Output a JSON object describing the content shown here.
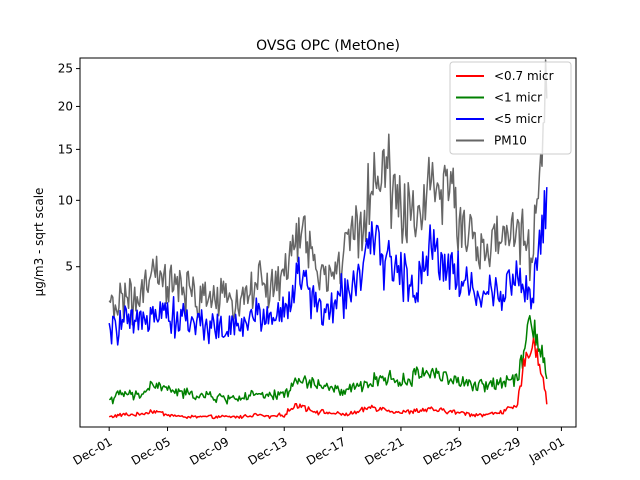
{
  "chart_data": {
    "type": "line",
    "title": "OVSG OPC (MetOne)",
    "xlabel": "",
    "ylabel": "µg/m3 - sqrt scale",
    "y_scale": "sqrt",
    "ylim": [
      0,
      26.5
    ],
    "xlim": [
      "2023-11-29",
      "2024-01-02"
    ],
    "y_ticks": [
      5,
      10,
      15,
      20,
      25
    ],
    "x_ticks": [
      {
        "date": "2023-12-01",
        "label": "Dec-01"
      },
      {
        "date": "2023-12-05",
        "label": "Dec-05"
      },
      {
        "date": "2023-12-09",
        "label": "Dec-09"
      },
      {
        "date": "2023-12-13",
        "label": "Dec-13"
      },
      {
        "date": "2023-12-17",
        "label": "Dec-17"
      },
      {
        "date": "2023-12-21",
        "label": "Dec-21"
      },
      {
        "date": "2023-12-25",
        "label": "Dec-25"
      },
      {
        "date": "2023-12-29",
        "label": "Dec-29"
      },
      {
        "date": "2024-01-01",
        "label": "Jan-01"
      }
    ],
    "grid": false,
    "legend_position": "top-right",
    "x": [
      "2023-12-01",
      "2023-12-02",
      "2023-12-03",
      "2023-12-04",
      "2023-12-05",
      "2023-12-06",
      "2023-12-07",
      "2023-12-08",
      "2023-12-09",
      "2023-12-10",
      "2023-12-11",
      "2023-12-12",
      "2023-12-13",
      "2023-12-14",
      "2023-12-15",
      "2023-12-16",
      "2023-12-17",
      "2023-12-18",
      "2023-12-19",
      "2023-12-20",
      "2023-12-21",
      "2023-12-22",
      "2023-12-23",
      "2023-12-24",
      "2023-12-25",
      "2023-12-26",
      "2023-12-27",
      "2023-12-28",
      "2023-12-29",
      "2023-12-30",
      "2023-12-31"
    ],
    "series": [
      {
        "name": "<0.7 micr",
        "color": "#ff0000",
        "values": [
          0.02,
          0.03,
          0.03,
          0.05,
          0.03,
          0.02,
          0.02,
          0.02,
          0.02,
          0.02,
          0.03,
          0.02,
          0.03,
          0.1,
          0.05,
          0.04,
          0.03,
          0.04,
          0.08,
          0.06,
          0.04,
          0.05,
          0.06,
          0.05,
          0.04,
          0.03,
          0.03,
          0.05,
          0.08,
          1.5,
          0.1
        ]
      },
      {
        "name": "<1 micr",
        "color": "#008000",
        "values": [
          0.15,
          0.22,
          0.18,
          0.35,
          0.28,
          0.22,
          0.2,
          0.18,
          0.16,
          0.17,
          0.2,
          0.18,
          0.22,
          0.42,
          0.38,
          0.3,
          0.24,
          0.3,
          0.4,
          0.5,
          0.38,
          0.52,
          0.62,
          0.5,
          0.4,
          0.32,
          0.35,
          0.42,
          0.5,
          2.3,
          0.45
        ]
      },
      {
        "name": "<5 micr",
        "color": "#0000ff",
        "values": [
          1.7,
          2.2,
          1.9,
          3.0,
          2.5,
          2.3,
          2.1,
          2.1,
          1.8,
          2.0,
          2.5,
          2.4,
          2.6,
          4.5,
          3.2,
          2.4,
          3.5,
          4.4,
          6.3,
          5.8,
          4.5,
          3.8,
          6.5,
          5.5,
          4.5,
          3.5,
          3.3,
          3.8,
          4.5,
          3.0,
          11.2
        ]
      },
      {
        "name": "PM10",
        "color": "#666666",
        "values": [
          2.6,
          3.4,
          2.9,
          4.6,
          4.0,
          3.6,
          3.3,
          3.4,
          3.0,
          3.3,
          4.0,
          3.9,
          4.3,
          7.7,
          5.5,
          4.0,
          5.8,
          7.6,
          11.0,
          13.0,
          9.8,
          8.2,
          12.4,
          10.8,
          9.0,
          6.5,
          6.2,
          6.8,
          7.6,
          5.0,
          21.0
        ]
      }
    ]
  }
}
